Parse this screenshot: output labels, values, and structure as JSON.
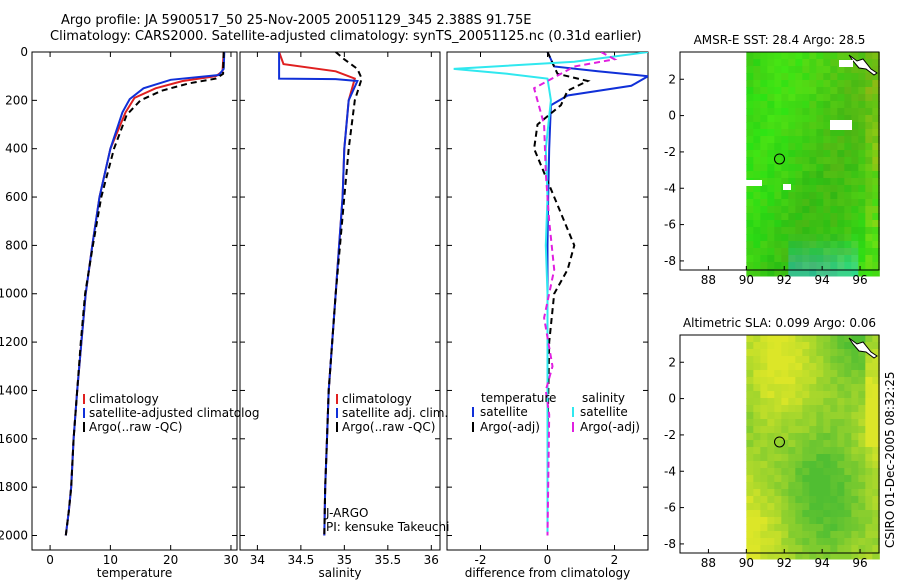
{
  "header": {
    "line1": "Argo profile: JA 5900517_50 25-Nov-2005 20051129_345 2.388S 91.75E",
    "line2": "Climatology: CARS2000. Satellite-adjusted climatology: synTS_20051125.nc (0.31d earlier)"
  },
  "side_label": "CSIRO 01-Dec-2005 08:32:25",
  "colors": {
    "red": "#e02020",
    "blue": "#1030d8",
    "black": "#000000",
    "cyan": "#30e8ef",
    "magenta": "#e020e0"
  },
  "chart_data": [
    {
      "id": "temperature",
      "type": "line",
      "xlabel": "temperature",
      "ylabel": "",
      "xlim": [
        -3,
        31
      ],
      "ylim": [
        0,
        2060
      ],
      "y_reversed": true,
      "xticks": [
        0,
        10,
        20,
        30
      ],
      "yticks": [
        0,
        200,
        400,
        600,
        800,
        1000,
        1200,
        1400,
        1600,
        1800,
        2000
      ],
      "legend": [
        "climatology",
        "satellite-adjusted climatolog",
        "Argo(..raw -QC)"
      ],
      "legend_placement": "lower-right",
      "series": [
        {
          "name": "climatology",
          "color": "red",
          "dash": "solid",
          "x": [
            28.8,
            28.6,
            27.5,
            22,
            17.5,
            14,
            12.5,
            10,
            8.2,
            7,
            5.9,
            5.2,
            4.5,
            3.9,
            3.5,
            3.1,
            2.8,
            2.6
          ],
          "y": [
            0,
            80,
            100,
            120,
            150,
            190,
            250,
            400,
            600,
            800,
            1000,
            1200,
            1400,
            1600,
            1800,
            1900,
            1960,
            2000
          ]
        },
        {
          "name": "satellite-adjusted climatolog",
          "color": "blue",
          "dash": "solid",
          "x": [
            28.9,
            28.8,
            28,
            20,
            15.5,
            13.2,
            12,
            10,
            8.2,
            7,
            5.9,
            5.2,
            4.5,
            3.9,
            3.5,
            3.1,
            2.8,
            2.6
          ],
          "y": [
            0,
            70,
            95,
            115,
            150,
            195,
            250,
            400,
            600,
            800,
            1000,
            1200,
            1400,
            1600,
            1800,
            1900,
            1960,
            2000
          ]
        },
        {
          "name": "Argo(..raw -QC)",
          "color": "black",
          "dash": "dashed",
          "x": [
            28.8,
            28.7,
            27.5,
            23,
            18.5,
            15,
            12.7,
            10.6,
            8.5,
            7.1,
            5.8,
            5.1,
            4.5,
            3.9,
            3.5,
            3.1,
            2.8,
            2.6
          ],
          "y": [
            0,
            90,
            110,
            130,
            160,
            200,
            260,
            400,
            600,
            800,
            1000,
            1200,
            1400,
            1600,
            1800,
            1900,
            1960,
            2000
          ]
        }
      ]
    },
    {
      "id": "salinity",
      "type": "line",
      "xlabel": "salinity",
      "ylabel": "",
      "xlim": [
        33.8,
        36.1
      ],
      "ylim": [
        0,
        2060
      ],
      "y_reversed": true,
      "xticks": [
        34,
        34.5,
        35,
        35.5,
        36
      ],
      "legend": [
        "climatology",
        "satellite adj. clim.",
        "Argo(..raw -QC)"
      ],
      "legend_placement": "lower-right",
      "annotations": [
        "J-ARGO",
        "PI: kensuke Takeuchi"
      ],
      "series": [
        {
          "name": "climatology",
          "color": "red",
          "dash": "solid",
          "x": [
            34.25,
            34.3,
            34.9,
            35.12,
            35.05,
            35.0,
            34.98,
            34.94,
            34.9,
            34.86,
            34.82,
            34.8,
            34.78,
            34.77
          ],
          "y": [
            0,
            50,
            80,
            110,
            200,
            400,
            600,
            800,
            1000,
            1200,
            1400,
            1600,
            1800,
            2000
          ]
        },
        {
          "name": "satellite adj. clim.",
          "color": "blue",
          "dash": "solid",
          "x": [
            34.25,
            34.25,
            34.9,
            35.15,
            35.05,
            35.0,
            34.98,
            34.94,
            34.9,
            34.86,
            34.82,
            34.8,
            34.78,
            34.77
          ],
          "y": [
            0,
            110,
            112,
            120,
            200,
            400,
            600,
            800,
            1000,
            1200,
            1400,
            1600,
            1800,
            2000
          ]
        },
        {
          "name": "Argo(..raw -QC)",
          "color": "black",
          "dash": "dashed",
          "x": [
            34.9,
            35.0,
            35.15,
            35.2,
            35.12,
            35.05,
            35.0,
            34.95,
            34.9,
            34.86,
            34.82,
            34.8,
            34.78,
            34.77
          ],
          "y": [
            0,
            30,
            70,
            110,
            200,
            400,
            600,
            800,
            1000,
            1200,
            1400,
            1600,
            1800,
            2000
          ]
        }
      ]
    },
    {
      "id": "difference",
      "type": "line",
      "xlabel": "difference from climatology",
      "ylabel": "",
      "xlim": [
        -3,
        3
      ],
      "ylim": [
        0,
        2060
      ],
      "y_reversed": true,
      "xticks": [
        -2,
        0,
        2
      ],
      "legend_groups": [
        {
          "title": "temperature",
          "items": [
            "satellite",
            "Argo(-adj)"
          ]
        },
        {
          "title": "salinity",
          "items": [
            "satellite",
            "Argo(-adj)"
          ]
        }
      ],
      "legend_placement": "lower-center",
      "series": [
        {
          "name": "temperature satellite",
          "color": "blue",
          "dash": "solid",
          "x": [
            0,
            0.2,
            1.5,
            3,
            2.5,
            0.6,
            0.1,
            0.05,
            0.02,
            0,
            0,
            0,
            0,
            0
          ],
          "y": [
            0,
            60,
            80,
            100,
            140,
            180,
            220,
            400,
            600,
            800,
            1000,
            1400,
            1800,
            2000
          ]
        },
        {
          "name": "temperature Argo(-adj)",
          "color": "black",
          "dash": "dashed",
          "x": [
            0,
            0.3,
            1.2,
            0.6,
            0.4,
            -0.3,
            -0.4,
            0.2,
            0.8,
            0.6,
            0.2,
            0.05,
            0,
            0
          ],
          "y": [
            0,
            90,
            120,
            160,
            220,
            300,
            400,
            600,
            800,
            900,
            1000,
            1200,
            1600,
            2000
          ]
        },
        {
          "name": "salinity satellite",
          "color": "cyan",
          "dash": "solid",
          "x": [
            3,
            0.8,
            -2.8,
            -1.2,
            0,
            0.1,
            -0.05,
            0,
            -0.05,
            0,
            0,
            0
          ],
          "y": [
            0,
            40,
            70,
            90,
            110,
            200,
            400,
            600,
            800,
            1000,
            1500,
            2000
          ]
        },
        {
          "name": "salinity Argo(-adj)",
          "color": "magenta",
          "dash": "dashed",
          "x": [
            1.6,
            2.0,
            0.8,
            -0.4,
            -0.1,
            -0.05,
            0.05,
            0.2,
            -0.1,
            0.15,
            -0.05,
            0.05,
            0
          ],
          "y": [
            0,
            30,
            60,
            150,
            300,
            500,
            700,
            900,
            1100,
            1300,
            1400,
            1500,
            2000
          ]
        }
      ]
    },
    {
      "id": "sst_map",
      "type": "heatmap",
      "title": "AMSR-E SST: 28.4 Argo: 28.5",
      "xlim": [
        86.5,
        97
      ],
      "ylim": [
        -8.5,
        3.5
      ],
      "xticks": [
        88,
        90,
        92,
        94,
        96
      ],
      "yticks": [
        -8,
        -6,
        -4,
        -2,
        0,
        2
      ],
      "argo_position": [
        91.75,
        -2.388
      ],
      "data_region": [
        90,
        97,
        -8.5,
        3.5
      ]
    },
    {
      "id": "sla_map",
      "type": "heatmap",
      "title": "Altimetric SLA: 0.099 Argo: 0.06",
      "xlim": [
        86.5,
        97
      ],
      "ylim": [
        -8.5,
        3.5
      ],
      "xticks": [
        88,
        90,
        92,
        94,
        96
      ],
      "yticks": [
        -8,
        -6,
        -4,
        -2,
        0,
        2
      ],
      "argo_position": [
        91.75,
        -2.388
      ],
      "data_region": [
        90,
        97,
        -8.5,
        3.5
      ]
    }
  ]
}
